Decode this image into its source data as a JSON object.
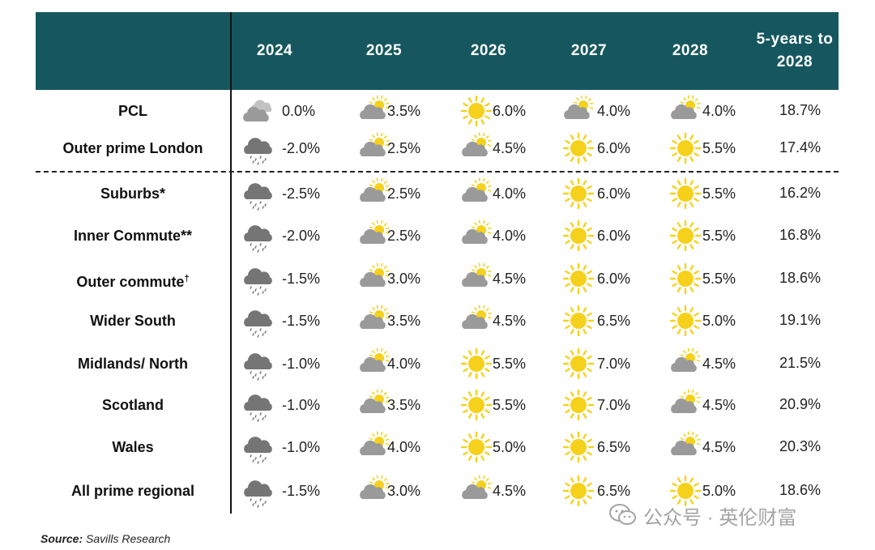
{
  "header": {
    "years": [
      "2024",
      "2025",
      "2026",
      "2027",
      "2028"
    ],
    "five_year_line1": "5-years to",
    "five_year_line2": "2028"
  },
  "rows": [
    {
      "label": "PCL",
      "sup": "",
      "cells": [
        [
          "overcast",
          "0.0%"
        ],
        [
          "partly-cloudy",
          "3.5%"
        ],
        [
          "sunny",
          "6.0%"
        ],
        [
          "partly-cloudy",
          "4.0%"
        ],
        [
          "partly-cloudy",
          "4.0%"
        ]
      ],
      "total": "18.7%"
    },
    {
      "label": "Outer prime London",
      "sup": "",
      "cells": [
        [
          "rain",
          "-2.0%"
        ],
        [
          "partly-cloudy",
          "2.5%"
        ],
        [
          "partly-cloudy",
          "4.5%"
        ],
        [
          "sunny",
          "6.0%"
        ],
        [
          "sunny",
          "5.5%"
        ]
      ],
      "total": "17.4%"
    },
    {
      "label": "Suburbs*",
      "sup": "",
      "cells": [
        [
          "rain",
          "-2.5%"
        ],
        [
          "partly-cloudy",
          "2.5%"
        ],
        [
          "partly-cloudy",
          "4.0%"
        ],
        [
          "sunny",
          "6.0%"
        ],
        [
          "sunny",
          "5.5%"
        ]
      ],
      "total": "16.2%"
    },
    {
      "label": "Inner Commute**",
      "sup": "",
      "cells": [
        [
          "rain",
          "-2.0%"
        ],
        [
          "partly-cloudy",
          "2.5%"
        ],
        [
          "partly-cloudy",
          "4.0%"
        ],
        [
          "sunny",
          "6.0%"
        ],
        [
          "sunny",
          "5.5%"
        ]
      ],
      "total": "16.8%"
    },
    {
      "label": "Outer commute",
      "sup": "†",
      "cells": [
        [
          "rain",
          "-1.5%"
        ],
        [
          "partly-cloudy",
          "3.0%"
        ],
        [
          "partly-cloudy",
          "4.5%"
        ],
        [
          "sunny",
          "6.0%"
        ],
        [
          "sunny",
          "5.5%"
        ]
      ],
      "total": "18.6%"
    },
    {
      "label": "Wider South",
      "sup": "",
      "cells": [
        [
          "rain",
          "-1.5%"
        ],
        [
          "partly-cloudy",
          "3.5%"
        ],
        [
          "partly-cloudy",
          "4.5%"
        ],
        [
          "sunny",
          "6.5%"
        ],
        [
          "sunny",
          "5.0%"
        ]
      ],
      "total": "19.1%"
    },
    {
      "label": "Midlands/ North",
      "sup": "",
      "cells": [
        [
          "rain",
          "-1.0%"
        ],
        [
          "partly-cloudy",
          "4.0%"
        ],
        [
          "sunny",
          "5.5%"
        ],
        [
          "sunny",
          "7.0%"
        ],
        [
          "partly-cloudy",
          "4.5%"
        ]
      ],
      "total": "21.5%"
    },
    {
      "label": "Scotland",
      "sup": "",
      "cells": [
        [
          "rain",
          "-1.0%"
        ],
        [
          "partly-cloudy",
          "3.5%"
        ],
        [
          "sunny",
          "5.5%"
        ],
        [
          "sunny",
          "7.0%"
        ],
        [
          "partly-cloudy",
          "4.5%"
        ]
      ],
      "total": "20.9%"
    },
    {
      "label": "Wales",
      "sup": "",
      "cells": [
        [
          "rain",
          "-1.0%"
        ],
        [
          "partly-cloudy",
          "4.0%"
        ],
        [
          "sunny",
          "5.0%"
        ],
        [
          "sunny",
          "6.5%"
        ],
        [
          "partly-cloudy",
          "4.5%"
        ]
      ],
      "total": "20.3%"
    },
    {
      "label": "All prime regional",
      "sup": "",
      "cells": [
        [
          "rain",
          "-1.5%"
        ],
        [
          "partly-cloudy",
          "3.0%"
        ],
        [
          "partly-cloudy",
          "4.5%"
        ],
        [
          "sunny",
          "6.5%"
        ],
        [
          "sunny",
          "5.0%"
        ]
      ],
      "total": "18.6%"
    }
  ],
  "source": {
    "label": "Source:",
    "text": "Savills Research"
  },
  "watermark": "公众号 · 英伦财富",
  "colors": {
    "header_bg": "#16575f",
    "sun": "#f6d11c",
    "cloud": "#9a9a9a",
    "rain_cloud": "#757575"
  }
}
